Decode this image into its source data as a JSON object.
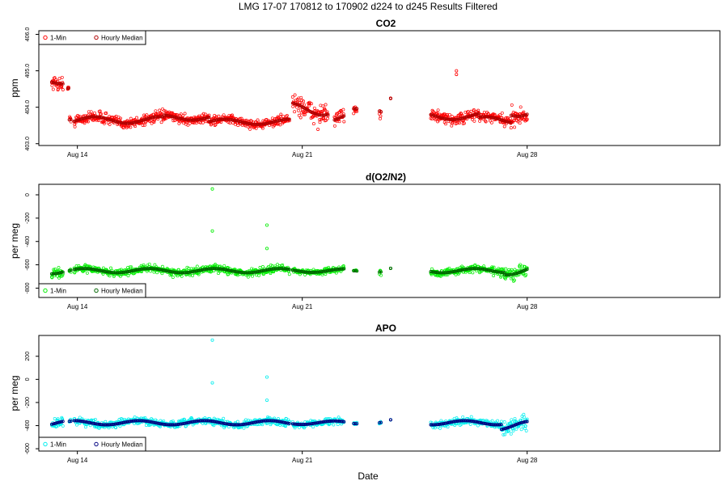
{
  "figure": {
    "main_title": "LMG   17-07    170812 to 170902    d224 to d245   Results Filtered",
    "xlabel": "Date"
  },
  "chart_data": [
    {
      "type": "scatter",
      "title": "CO2",
      "ylabel": "ppm",
      "x_unit": "days since 2017-08-12",
      "xlim": [
        0.8,
        22.0
      ],
      "x_ticks": [
        {
          "x": 2,
          "label": "Aug 14"
        },
        {
          "x": 9,
          "label": "Aug 21"
        },
        {
          "x": 16,
          "label": "Aug 28"
        }
      ],
      "ylim": [
        402.95,
        406.1
      ],
      "y_ticks": [
        {
          "y": 403.0,
          "label": "403.0"
        },
        {
          "y": 404.0,
          "label": "404.0"
        },
        {
          "y": 405.0,
          "label": "405.0"
        },
        {
          "y": 406.0,
          "label": "406.0"
        }
      ],
      "legend": {
        "position": "top-left",
        "entries": [
          "1-Min",
          "Hourly Median"
        ]
      },
      "colors": {
        "minute": "#ff0000",
        "hourly": "#b00000"
      },
      "segments": [
        {
          "start": 1.2,
          "end": 1.55,
          "level": 404.75,
          "spread": 0.18
        },
        {
          "start": 1.7,
          "end": 1.73,
          "level": 404.55,
          "spread": 0.06
        },
        {
          "start": 1.75,
          "end": 1.8,
          "level": 403.7,
          "spread": 0.1
        },
        {
          "start": 1.9,
          "end": 4.7,
          "level": 403.65,
          "spread": 0.15
        },
        {
          "start": 4.7,
          "end": 6.1,
          "level": 403.72,
          "spread": 0.12
        },
        {
          "start": 6.1,
          "end": 8.6,
          "level": 403.6,
          "spread": 0.12
        },
        {
          "start": 8.7,
          "end": 9.8,
          "level": 403.95,
          "spread": 0.28
        },
        {
          "start": 10.0,
          "end": 10.3,
          "level": 403.7,
          "spread": 0.2
        },
        {
          "start": 10.6,
          "end": 10.7,
          "level": 403.9,
          "spread": 0.1
        },
        {
          "start": 11.4,
          "end": 11.45,
          "level": 404.0,
          "spread": 0.25
        },
        {
          "start": 11.75,
          "end": 11.75,
          "level": 404.25,
          "spread": 0.01
        },
        {
          "start": 13.0,
          "end": 14.5,
          "level": 403.75,
          "spread": 0.15
        },
        {
          "start": 14.5,
          "end": 15.5,
          "level": 403.65,
          "spread": 0.15
        },
        {
          "start": 15.5,
          "end": 16.0,
          "level": 403.9,
          "spread": 0.25
        }
      ],
      "outliers": [
        {
          "x": 13.8,
          "y": 405.0
        },
        {
          "x": 13.8,
          "y": 404.9
        }
      ]
    },
    {
      "type": "scatter",
      "title": "d(O2/N2)",
      "ylabel": "per meg",
      "x_unit": "days since 2017-08-12",
      "xlim": [
        0.8,
        22.0
      ],
      "x_ticks": [
        {
          "x": 2,
          "label": "Aug 14"
        },
        {
          "x": 9,
          "label": "Aug 21"
        },
        {
          "x": 16,
          "label": "Aug 28"
        }
      ],
      "ylim": [
        -880,
        90
      ],
      "y_ticks": [
        {
          "y": -800,
          "label": "-800"
        },
        {
          "y": -600,
          "label": "-600"
        },
        {
          "y": -400,
          "label": "-400"
        },
        {
          "y": -200,
          "label": "-200"
        },
        {
          "y": 0,
          "label": "0"
        }
      ],
      "legend": {
        "position": "bottom-left",
        "entries": [
          "1-Min",
          "Hourly Median"
        ]
      },
      "colors": {
        "minute": "#00ee00",
        "hourly": "#006400"
      },
      "segments": [
        {
          "start": 1.2,
          "end": 1.55,
          "level": -650,
          "spread": 45
        },
        {
          "start": 1.75,
          "end": 1.8,
          "level": -650,
          "spread": 15
        },
        {
          "start": 1.9,
          "end": 8.6,
          "level": -650,
          "spread": 30
        },
        {
          "start": 8.7,
          "end": 10.3,
          "level": -650,
          "spread": 25
        },
        {
          "start": 10.6,
          "end": 10.7,
          "level": -655,
          "spread": 10
        },
        {
          "start": 11.4,
          "end": 11.45,
          "level": -650,
          "spread": 20
        },
        {
          "start": 11.75,
          "end": 11.75,
          "level": -630,
          "spread": 1
        },
        {
          "start": 13.0,
          "end": 15.3,
          "level": -650,
          "spread": 30
        },
        {
          "start": 15.3,
          "end": 16.0,
          "level": -650,
          "spread": 60
        }
      ],
      "outliers": [
        {
          "x": 6.2,
          "y": 50
        },
        {
          "x": 6.2,
          "y": -310
        },
        {
          "x": 7.9,
          "y": -260
        },
        {
          "x": 7.9,
          "y": -460
        }
      ]
    },
    {
      "type": "scatter",
      "title": "APO",
      "ylabel": "per meg",
      "x_unit": "days since 2017-08-12",
      "xlim": [
        0.8,
        22.0
      ],
      "x_ticks": [
        {
          "x": 2,
          "label": "Aug 14"
        },
        {
          "x": 9,
          "label": "Aug 21"
        },
        {
          "x": 16,
          "label": "Aug 28"
        }
      ],
      "ylim": [
        -620,
        380
      ],
      "y_ticks": [
        {
          "y": -600,
          "label": "-600"
        },
        {
          "y": -400,
          "label": "-400"
        },
        {
          "y": -200,
          "label": "-200"
        },
        {
          "y": 0,
          "label": "0"
        },
        {
          "y": 200,
          "label": "200"
        }
      ],
      "legend": {
        "position": "bottom-left",
        "entries": [
          "1-Min",
          "Hourly Median"
        ]
      },
      "colors": {
        "minute": "#00eeee",
        "hourly": "#000080"
      },
      "segments": [
        {
          "start": 1.2,
          "end": 1.55,
          "level": -375,
          "spread": 40
        },
        {
          "start": 1.75,
          "end": 1.8,
          "level": -370,
          "spread": 15
        },
        {
          "start": 1.9,
          "end": 8.6,
          "level": -375,
          "spread": 30
        },
        {
          "start": 8.7,
          "end": 10.3,
          "level": -375,
          "spread": 25
        },
        {
          "start": 10.6,
          "end": 10.7,
          "level": -380,
          "spread": 10
        },
        {
          "start": 11.4,
          "end": 11.45,
          "level": -370,
          "spread": 20
        },
        {
          "start": 11.75,
          "end": 11.75,
          "level": -350,
          "spread": 1
        },
        {
          "start": 13.0,
          "end": 15.2,
          "level": -375,
          "spread": 30
        },
        {
          "start": 15.2,
          "end": 16.0,
          "level": -400,
          "spread": 60
        }
      ],
      "outliers": [
        {
          "x": 6.2,
          "y": 340
        },
        {
          "x": 6.2,
          "y": -30
        },
        {
          "x": 7.9,
          "y": 20
        },
        {
          "x": 7.9,
          "y": -180
        }
      ]
    }
  ]
}
